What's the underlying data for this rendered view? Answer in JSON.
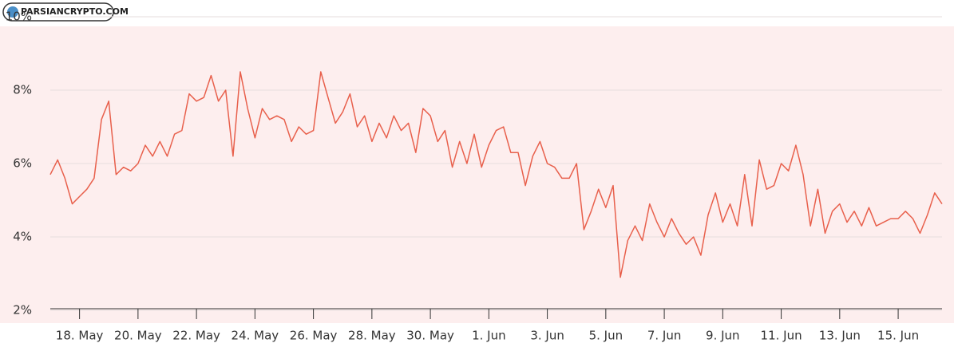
{
  "watermark": "PARSIANCRYPTO.COM",
  "chart_data": {
    "type": "line",
    "categories": [
      null,
      null,
      null,
      null,
      "18. May",
      null,
      null,
      null,
      null,
      null,
      null,
      null,
      "20. May",
      null,
      null,
      null,
      null,
      null,
      null,
      null,
      "22. May",
      null,
      null,
      null,
      null,
      null,
      null,
      null,
      "24. May",
      null,
      null,
      null,
      null,
      null,
      null,
      null,
      "26. May",
      null,
      null,
      null,
      null,
      null,
      null,
      null,
      "28. May",
      null,
      null,
      null,
      null,
      null,
      null,
      null,
      "30. May",
      null,
      null,
      null,
      null,
      null,
      null,
      null,
      "1. Jun",
      null,
      null,
      null,
      null,
      null,
      null,
      null,
      "3. Jun",
      null,
      null,
      null,
      null,
      null,
      null,
      null,
      "5. Jun",
      null,
      null,
      null,
      null,
      null,
      null,
      null,
      "7. Jun",
      null,
      null,
      null,
      null,
      null,
      null,
      null,
      "9. Jun",
      null,
      null,
      null,
      null,
      null,
      null,
      null,
      "11. Jun",
      null,
      null,
      null,
      null,
      null,
      null,
      null,
      "13. Jun",
      null,
      null,
      null,
      null,
      null,
      null,
      null,
      "15. Jun",
      null,
      null,
      null,
      null,
      null,
      null
    ],
    "series": [
      {
        "color": "#e8604c",
        "values": [
          5.7,
          6.1,
          5.6,
          4.9,
          5.1,
          5.3,
          5.6,
          7.2,
          7.7,
          5.7,
          5.9,
          5.8,
          6.0,
          6.5,
          6.2,
          6.6,
          6.2,
          6.8,
          6.9,
          7.9,
          7.7,
          7.8,
          8.4,
          7.7,
          8.0,
          6.2,
          8.5,
          7.5,
          6.7,
          7.5,
          7.2,
          7.3,
          7.2,
          6.6,
          7.0,
          6.8,
          6.9,
          8.5,
          7.8,
          7.1,
          7.4,
          7.9,
          7.0,
          7.3,
          6.6,
          7.1,
          6.7,
          7.3,
          6.9,
          7.1,
          6.3,
          7.5,
          7.3,
          6.6,
          6.9,
          5.9,
          6.6,
          6.0,
          6.8,
          5.9,
          6.5,
          6.9,
          7.0,
          6.3,
          6.3,
          5.4,
          6.2,
          6.6,
          6.0,
          5.9,
          5.6,
          5.6,
          6.0,
          4.2,
          4.7,
          5.3,
          4.8,
          5.4,
          2.9,
          3.9,
          4.3,
          3.9,
          4.9,
          4.4,
          4.0,
          4.5,
          4.1,
          3.8,
          4.0,
          3.5,
          4.6,
          5.2,
          4.4,
          4.9,
          4.3,
          5.7,
          4.3,
          6.1,
          5.3,
          5.4,
          6.0,
          5.8,
          6.5,
          5.7,
          4.3,
          5.3,
          4.1,
          4.7,
          4.9,
          4.4,
          4.7,
          4.3,
          4.8,
          4.3,
          4.4,
          4.5,
          4.5,
          4.7,
          4.5,
          4.1,
          4.6,
          5.2,
          4.9
        ]
      }
    ],
    "ylim": [
      2,
      10
    ],
    "yticks": [
      {
        "value": 2,
        "label": "2%"
      },
      {
        "value": 4,
        "label": "4%"
      },
      {
        "value": 6,
        "label": "6%"
      },
      {
        "value": 8,
        "label": "8%"
      },
      {
        "value": 10,
        "label": "10%"
      }
    ],
    "grid": true
  }
}
